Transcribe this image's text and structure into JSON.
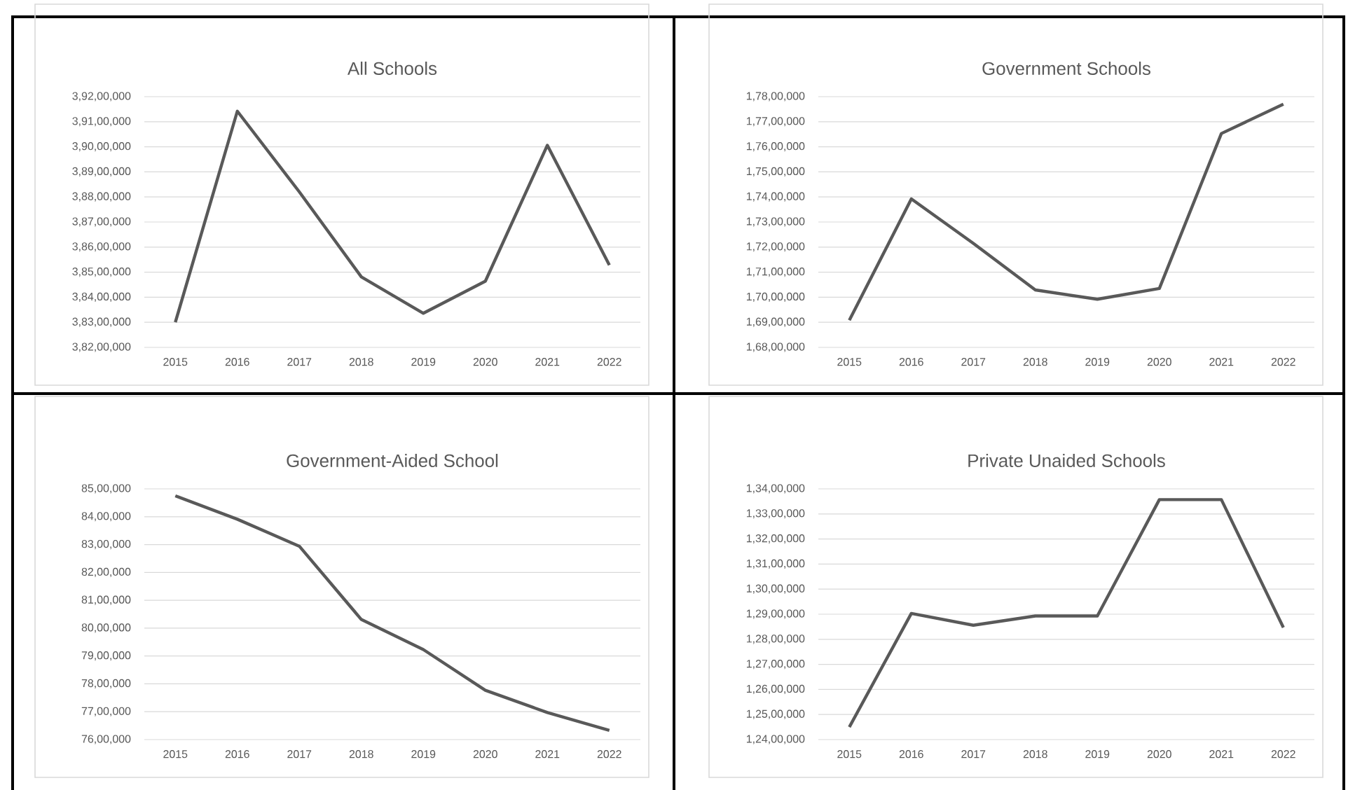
{
  "chart_data": [
    {
      "type": "line",
      "title": "All Schools",
      "categories": [
        "2015",
        "2016",
        "2017",
        "2018",
        "2019",
        "2020",
        "2021",
        "2022"
      ],
      "color": "#595959",
      "grid": "y",
      "values": [
        38300000,
        39142000,
        38820000,
        38481000,
        38336000,
        38464000,
        39006000,
        38528000
      ],
      "ylim": [
        38200000,
        39200000
      ],
      "yticks": [
        {
          "value": 38200000,
          "label": "3,82,00,000"
        },
        {
          "value": 38300000,
          "label": "3,83,00,000"
        },
        {
          "value": 38400000,
          "label": "3,84,00,000"
        },
        {
          "value": 38500000,
          "label": "3,85,00,000"
        },
        {
          "value": 38600000,
          "label": "3,86,00,000"
        },
        {
          "value": 38700000,
          "label": "3,87,00,000"
        },
        {
          "value": 38800000,
          "label": "3,88,00,000"
        },
        {
          "value": 38900000,
          "label": "3,89,00,000"
        },
        {
          "value": 39000000,
          "label": "3,90,00,000"
        },
        {
          "value": 39100000,
          "label": "3,91,00,000"
        },
        {
          "value": 39200000,
          "label": "3,92,00,000"
        }
      ]
    },
    {
      "type": "line",
      "title": "Government Schools",
      "categories": [
        "2015",
        "2016",
        "2017",
        "2018",
        "2019",
        "2020",
        "2021",
        "2022"
      ],
      "color": "#595959",
      "grid": "y",
      "values": [
        16908000,
        17392000,
        17215000,
        17029000,
        16992000,
        17035000,
        17653000,
        17770000
      ],
      "ylim": [
        16800000,
        17800000
      ],
      "yticks": [
        {
          "value": 16800000,
          "label": "1,68,00,000"
        },
        {
          "value": 16900000,
          "label": "1,69,00,000"
        },
        {
          "value": 17000000,
          "label": "1,70,00,000"
        },
        {
          "value": 17100000,
          "label": "1,71,00,000"
        },
        {
          "value": 17200000,
          "label": "1,72,00,000"
        },
        {
          "value": 17300000,
          "label": "1,73,00,000"
        },
        {
          "value": 17400000,
          "label": "1,74,00,000"
        },
        {
          "value": 17500000,
          "label": "1,75,00,000"
        },
        {
          "value": 17600000,
          "label": "1,76,00,000"
        },
        {
          "value": 17700000,
          "label": "1,77,00,000"
        },
        {
          "value": 17800000,
          "label": "1,78,00,000"
        }
      ]
    },
    {
      "type": "line",
      "title": "Government-Aided School",
      "categories": [
        "2015",
        "2016",
        "2017",
        "2018",
        "2019",
        "2020",
        "2021",
        "2022"
      ],
      "color": "#595959",
      "grid": "y",
      "values": [
        8475000,
        8391000,
        8294000,
        8031000,
        7923000,
        7777000,
        7697000,
        7633000
      ],
      "ylim": [
        7600000,
        8500000
      ],
      "yticks": [
        {
          "value": 7600000,
          "label": "76,00,000"
        },
        {
          "value": 7700000,
          "label": "77,00,000"
        },
        {
          "value": 7800000,
          "label": "78,00,000"
        },
        {
          "value": 7900000,
          "label": "79,00,000"
        },
        {
          "value": 8000000,
          "label": "80,00,000"
        },
        {
          "value": 8100000,
          "label": "81,00,000"
        },
        {
          "value": 8200000,
          "label": "82,00,000"
        },
        {
          "value": 8300000,
          "label": "83,00,000"
        },
        {
          "value": 8400000,
          "label": "84,00,000"
        },
        {
          "value": 8500000,
          "label": "85,00,000"
        }
      ]
    },
    {
      "type": "line",
      "title": "Private Unaided Schools",
      "categories": [
        "2015",
        "2016",
        "2017",
        "2018",
        "2019",
        "2020",
        "2021",
        "2022"
      ],
      "color": "#595959",
      "grid": "y",
      "values": [
        12450000,
        12903000,
        12856000,
        12893000,
        12893000,
        13357000,
        13357000,
        12847000
      ],
      "ylim": [
        12400000,
        13400000
      ],
      "yticks": [
        {
          "value": 12400000,
          "label": "1,24,00,000"
        },
        {
          "value": 12500000,
          "label": "1,25,00,000"
        },
        {
          "value": 12600000,
          "label": "1,26,00,000"
        },
        {
          "value": 12700000,
          "label": "1,27,00,000"
        },
        {
          "value": 12800000,
          "label": "1,28,00,000"
        },
        {
          "value": 12900000,
          "label": "1,29,00,000"
        },
        {
          "value": 13000000,
          "label": "1,30,00,000"
        },
        {
          "value": 13100000,
          "label": "1,31,00,000"
        },
        {
          "value": 13200000,
          "label": "1,32,00,000"
        },
        {
          "value": 13300000,
          "label": "1,33,00,000"
        },
        {
          "value": 13400000,
          "label": "1,34,00,000"
        }
      ]
    }
  ]
}
